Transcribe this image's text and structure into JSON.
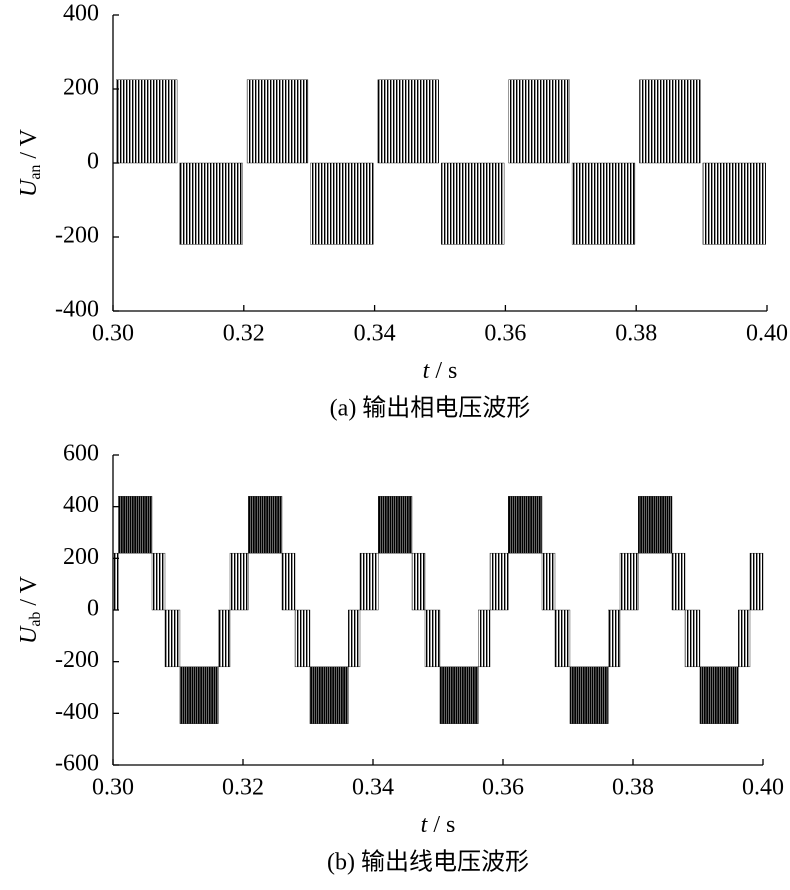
{
  "chart_data": [
    {
      "type": "band",
      "y_label": "U",
      "y_label_sub": "an",
      "y_label_unit": "/ V",
      "x_label": "t",
      "x_label_unit": "/ s",
      "caption": "(a)  输出相电压波形",
      "xlim": [
        0.3,
        0.4
      ],
      "ylim": [
        -400,
        400
      ],
      "xticks": [
        {
          "value": 0.3,
          "label": "0.30"
        },
        0.32,
        0.34,
        0.36,
        0.38,
        {
          "value": 0.4,
          "label": "0.40"
        }
      ],
      "yticks": [
        -400,
        -200,
        0,
        200,
        400
      ],
      "color": "#000000",
      "bands": [
        [
          0.3005,
          0.3098,
          0,
          225
        ],
        [
          0.3102,
          0.3198,
          -220,
          0
        ],
        [
          0.3205,
          0.3298,
          0,
          225
        ],
        [
          0.3302,
          0.3398,
          -220,
          0
        ],
        [
          0.3405,
          0.3498,
          0,
          225
        ],
        [
          0.3502,
          0.3598,
          -220,
          0
        ],
        [
          0.3605,
          0.3698,
          0,
          225
        ],
        [
          0.3702,
          0.3798,
          -220,
          0
        ],
        [
          0.3805,
          0.3898,
          0,
          225
        ],
        [
          0.3902,
          0.3998,
          -220,
          0
        ]
      ]
    },
    {
      "type": "band",
      "y_label": "U",
      "y_label_sub": "ab",
      "y_label_unit": "/ V",
      "x_label": "t",
      "x_label_unit": "/ s",
      "caption": "(b)  输出线电压波形",
      "xlim": [
        0.3,
        0.4
      ],
      "ylim": [
        -600,
        600
      ],
      "xticks": [
        {
          "value": 0.3,
          "label": "0.30"
        },
        0.32,
        0.34,
        0.36,
        0.38,
        {
          "value": 0.4,
          "label": "0.40"
        }
      ],
      "yticks": [
        -600,
        -400,
        -200,
        0,
        200,
        400,
        600
      ],
      "color": "#000000",
      "bands": [
        [
          0.3,
          0.3008,
          0,
          220
        ],
        [
          0.3008,
          0.306,
          220,
          440
        ],
        [
          0.306,
          0.308,
          0,
          220
        ],
        [
          0.308,
          0.3103,
          -220,
          0
        ],
        [
          0.3103,
          0.3162,
          -440,
          -220
        ],
        [
          0.3162,
          0.318,
          -220,
          0
        ],
        [
          0.318,
          0.3208,
          0,
          220
        ],
        [
          0.3208,
          0.326,
          220,
          440
        ],
        [
          0.326,
          0.328,
          0,
          220
        ],
        [
          0.328,
          0.3303,
          -220,
          0
        ],
        [
          0.3303,
          0.3362,
          -440,
          -220
        ],
        [
          0.3362,
          0.338,
          -220,
          0
        ],
        [
          0.338,
          0.3408,
          0,
          220
        ],
        [
          0.3408,
          0.346,
          220,
          440
        ],
        [
          0.346,
          0.348,
          0,
          220
        ],
        [
          0.348,
          0.3503,
          -220,
          0
        ],
        [
          0.3503,
          0.3562,
          -440,
          -220
        ],
        [
          0.3562,
          0.358,
          -220,
          0
        ],
        [
          0.358,
          0.3608,
          0,
          220
        ],
        [
          0.3608,
          0.366,
          220,
          440
        ],
        [
          0.366,
          0.368,
          0,
          220
        ],
        [
          0.368,
          0.3703,
          -220,
          0
        ],
        [
          0.3703,
          0.3762,
          -440,
          -220
        ],
        [
          0.3762,
          0.378,
          -220,
          0
        ],
        [
          0.378,
          0.3808,
          0,
          220
        ],
        [
          0.3808,
          0.386,
          220,
          440
        ],
        [
          0.386,
          0.388,
          0,
          220
        ],
        [
          0.388,
          0.3903,
          -220,
          0
        ],
        [
          0.3903,
          0.3962,
          -440,
          -220
        ],
        [
          0.3962,
          0.398,
          -220,
          0
        ],
        [
          0.398,
          0.4,
          0,
          220
        ]
      ]
    }
  ]
}
